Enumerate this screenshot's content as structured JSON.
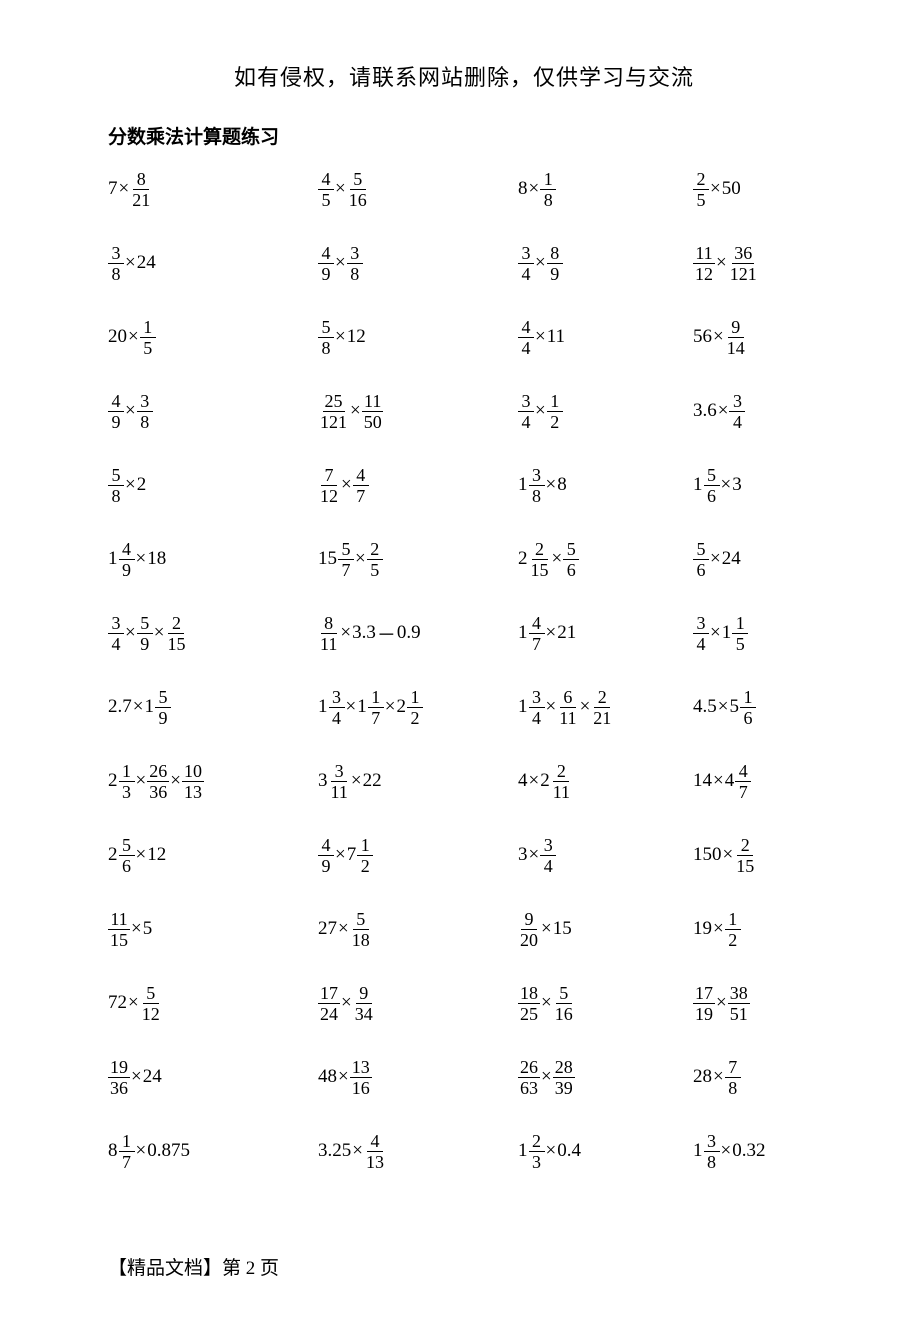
{
  "header_note": "如有侵权，请联系网站删除，仅供学习与交流",
  "title": "分数乘法计算题练习",
  "footer": "【精品文档】第 2 页",
  "times": "×",
  "minus": "－",
  "rows": [
    [
      [
        {
          "t": "int",
          "v": "7"
        },
        {
          "t": "op",
          "v": "×"
        },
        {
          "t": "frac",
          "n": "8",
          "d": "21"
        }
      ],
      [
        {
          "t": "frac",
          "n": "4",
          "d": "5"
        },
        {
          "t": "op",
          "v": "×"
        },
        {
          "t": "frac",
          "n": "5",
          "d": "16"
        }
      ],
      [
        {
          "t": "int",
          "v": "8"
        },
        {
          "t": "op",
          "v": "×"
        },
        {
          "t": "frac",
          "n": "1",
          "d": "8"
        }
      ],
      [
        {
          "t": "frac",
          "n": "2",
          "d": "5"
        },
        {
          "t": "op",
          "v": "×"
        },
        {
          "t": "int",
          "v": "50"
        }
      ]
    ],
    [
      [
        {
          "t": "frac",
          "n": "3",
          "d": "8"
        },
        {
          "t": "op",
          "v": "×"
        },
        {
          "t": "int",
          "v": "24"
        }
      ],
      [
        {
          "t": "frac",
          "n": "4",
          "d": "9"
        },
        {
          "t": "op",
          "v": "×"
        },
        {
          "t": "frac",
          "n": "3",
          "d": "8"
        }
      ],
      [
        {
          "t": "frac",
          "n": "3",
          "d": "4"
        },
        {
          "t": "op",
          "v": "×"
        },
        {
          "t": "frac",
          "n": "8",
          "d": "9"
        }
      ],
      [
        {
          "t": "frac",
          "n": "11",
          "d": "12"
        },
        {
          "t": "op",
          "v": "×"
        },
        {
          "t": "frac",
          "n": "36",
          "d": "121"
        }
      ]
    ],
    [
      [
        {
          "t": "int",
          "v": "20"
        },
        {
          "t": "op",
          "v": "×"
        },
        {
          "t": "frac",
          "n": "1",
          "d": "5"
        }
      ],
      [
        {
          "t": "frac",
          "n": "5",
          "d": "8"
        },
        {
          "t": "op",
          "v": "×"
        },
        {
          "t": "int",
          "v": "12"
        }
      ],
      [
        {
          "t": "frac",
          "n": "4",
          "d": "4"
        },
        {
          "t": "op",
          "v": "×"
        },
        {
          "t": "int",
          "v": "11"
        }
      ],
      [
        {
          "t": "int",
          "v": "56"
        },
        {
          "t": "op",
          "v": "×"
        },
        {
          "t": "frac",
          "n": "9",
          "d": "14"
        }
      ]
    ],
    [
      [
        {
          "t": "frac",
          "n": "4",
          "d": "9"
        },
        {
          "t": "op",
          "v": "×"
        },
        {
          "t": "frac",
          "n": "3",
          "d": "8"
        }
      ],
      [
        {
          "t": "frac",
          "n": "25",
          "d": "121"
        },
        {
          "t": "op",
          "v": "×"
        },
        {
          "t": "frac",
          "n": "11",
          "d": "50"
        }
      ],
      [
        {
          "t": "frac",
          "n": "3",
          "d": "4"
        },
        {
          "t": "op",
          "v": "×"
        },
        {
          "t": "frac",
          "n": "1",
          "d": "2"
        }
      ],
      [
        {
          "t": "int",
          "v": "3.6"
        },
        {
          "t": "op",
          "v": "×"
        },
        {
          "t": "frac",
          "n": "3",
          "d": "4"
        }
      ]
    ],
    [
      [
        {
          "t": "frac",
          "n": "5",
          "d": "8"
        },
        {
          "t": "op",
          "v": "×"
        },
        {
          "t": "int",
          "v": "2"
        }
      ],
      [
        {
          "t": "frac",
          "n": "7",
          "d": "12"
        },
        {
          "t": "op",
          "v": "×"
        },
        {
          "t": "frac",
          "n": "4",
          "d": "7"
        }
      ],
      [
        {
          "t": "mixed",
          "w": "1",
          "n": "3",
          "d": "8"
        },
        {
          "t": "op",
          "v": "×"
        },
        {
          "t": "int",
          "v": "8"
        }
      ],
      [
        {
          "t": "mixed",
          "w": "1",
          "n": "5",
          "d": "6"
        },
        {
          "t": "op",
          "v": "×"
        },
        {
          "t": "int",
          "v": "3"
        }
      ]
    ],
    [
      [
        {
          "t": "mixed",
          "w": "1",
          "n": "4",
          "d": "9"
        },
        {
          "t": "op",
          "v": "×"
        },
        {
          "t": "int",
          "v": "18"
        }
      ],
      [
        {
          "t": "mixed",
          "w": "15",
          "n": "5",
          "d": "7"
        },
        {
          "t": "op",
          "v": "×"
        },
        {
          "t": "frac",
          "n": "2",
          "d": "5"
        }
      ],
      [
        {
          "t": "mixed",
          "w": "2",
          "n": "2",
          "d": "15"
        },
        {
          "t": "op",
          "v": "×"
        },
        {
          "t": "frac",
          "n": "5",
          "d": "6"
        }
      ],
      [
        {
          "t": "frac",
          "n": "5",
          "d": "6"
        },
        {
          "t": "op",
          "v": "×"
        },
        {
          "t": "int",
          "v": "24"
        }
      ]
    ],
    [
      [
        {
          "t": "frac",
          "n": "3",
          "d": "4"
        },
        {
          "t": "op",
          "v": "×"
        },
        {
          "t": "frac",
          "n": "5",
          "d": "9"
        },
        {
          "t": "op",
          "v": "×"
        },
        {
          "t": "frac",
          "n": "2",
          "d": "15"
        }
      ],
      [
        {
          "t": "frac",
          "n": "8",
          "d": "11"
        },
        {
          "t": "op",
          "v": "×"
        },
        {
          "t": "int",
          "v": "3.3"
        },
        {
          "t": "op",
          "v": "－"
        },
        {
          "t": "int",
          "v": "0.9"
        }
      ],
      [
        {
          "t": "mixed",
          "w": "1",
          "n": "4",
          "d": "7"
        },
        {
          "t": "op",
          "v": "×"
        },
        {
          "t": "int",
          "v": "21"
        }
      ],
      [
        {
          "t": "frac",
          "n": "3",
          "d": "4"
        },
        {
          "t": "op",
          "v": "×"
        },
        {
          "t": "mixed",
          "w": "1",
          "n": "1",
          "d": "5"
        }
      ]
    ],
    [
      [
        {
          "t": "int",
          "v": "2.7"
        },
        {
          "t": "op",
          "v": "×"
        },
        {
          "t": "mixed",
          "w": "1",
          "n": "5",
          "d": "9"
        }
      ],
      [
        {
          "t": "mixed",
          "w": "1",
          "n": "3",
          "d": "4"
        },
        {
          "t": "op",
          "v": "×"
        },
        {
          "t": "mixed",
          "w": "1",
          "n": "1",
          "d": "7"
        },
        {
          "t": "op",
          "v": "×"
        },
        {
          "t": "mixed",
          "w": "2",
          "n": "1",
          "d": "2"
        }
      ],
      [
        {
          "t": "mixed",
          "w": "1",
          "n": "3",
          "d": "4"
        },
        {
          "t": "op",
          "v": "×"
        },
        {
          "t": "frac",
          "n": "6",
          "d": "11"
        },
        {
          "t": "op",
          "v": "×"
        },
        {
          "t": "frac",
          "n": "2",
          "d": "21"
        }
      ],
      [
        {
          "t": "int",
          "v": "4.5"
        },
        {
          "t": "op",
          "v": "×"
        },
        {
          "t": "mixed",
          "w": "5",
          "n": "1",
          "d": "6"
        }
      ]
    ],
    [
      [
        {
          "t": "mixed",
          "w": "2",
          "n": "1",
          "d": "3"
        },
        {
          "t": "op",
          "v": "×"
        },
        {
          "t": "frac",
          "n": "26",
          "d": "36"
        },
        {
          "t": "op",
          "v": "×"
        },
        {
          "t": "frac",
          "n": "10",
          "d": "13"
        }
      ],
      [
        {
          "t": "mixed",
          "w": "3",
          "n": "3",
          "d": "11"
        },
        {
          "t": "op",
          "v": "×"
        },
        {
          "t": "int",
          "v": "22"
        }
      ],
      [
        {
          "t": "int",
          "v": "4"
        },
        {
          "t": "op",
          "v": "×"
        },
        {
          "t": "mixed",
          "w": "2",
          "n": "2",
          "d": "11"
        }
      ],
      [
        {
          "t": "int",
          "v": "14"
        },
        {
          "t": "op",
          "v": "×"
        },
        {
          "t": "mixed",
          "w": "4",
          "n": "4",
          "d": "7"
        }
      ]
    ],
    [
      [
        {
          "t": "mixed",
          "w": "2",
          "n": "5",
          "d": "6"
        },
        {
          "t": "op",
          "v": "×"
        },
        {
          "t": "int",
          "v": "12"
        }
      ],
      [
        {
          "t": "frac",
          "n": "4",
          "d": "9"
        },
        {
          "t": "op",
          "v": "×"
        },
        {
          "t": "mixed",
          "w": "7",
          "n": "1",
          "d": "2"
        }
      ],
      [
        {
          "t": "int",
          "v": "3"
        },
        {
          "t": "op",
          "v": "×"
        },
        {
          "t": "frac",
          "n": "3",
          "d": "4"
        }
      ],
      [
        {
          "t": "int",
          "v": "150"
        },
        {
          "t": "op",
          "v": "×"
        },
        {
          "t": "frac",
          "n": "2",
          "d": "15"
        }
      ]
    ],
    [
      [
        {
          "t": "frac",
          "n": "11",
          "d": "15"
        },
        {
          "t": "op",
          "v": "×"
        },
        {
          "t": "int",
          "v": "5"
        }
      ],
      [
        {
          "t": "int",
          "v": "27"
        },
        {
          "t": "op",
          "v": "×"
        },
        {
          "t": "frac",
          "n": "5",
          "d": "18"
        }
      ],
      [
        {
          "t": "frac",
          "n": "9",
          "d": "20"
        },
        {
          "t": "op",
          "v": "×"
        },
        {
          "t": "int",
          "v": "15"
        }
      ],
      [
        {
          "t": "int",
          "v": "19"
        },
        {
          "t": "op",
          "v": "×"
        },
        {
          "t": "frac",
          "n": "1",
          "d": "2"
        }
      ]
    ],
    [
      [
        {
          "t": "int",
          "v": "72"
        },
        {
          "t": "op",
          "v": "×"
        },
        {
          "t": "frac",
          "n": "5",
          "d": "12"
        }
      ],
      [
        {
          "t": "frac",
          "n": "17",
          "d": "24"
        },
        {
          "t": "op",
          "v": "×"
        },
        {
          "t": "frac",
          "n": "9",
          "d": "34"
        }
      ],
      [
        {
          "t": "frac",
          "n": "18",
          "d": "25"
        },
        {
          "t": "op",
          "v": "×"
        },
        {
          "t": "frac",
          "n": "5",
          "d": "16"
        }
      ],
      [
        {
          "t": "frac",
          "n": "17",
          "d": "19"
        },
        {
          "t": "op",
          "v": "×"
        },
        {
          "t": "frac",
          "n": "38",
          "d": "51"
        }
      ]
    ],
    [
      [
        {
          "t": "frac",
          "n": "19",
          "d": "36"
        },
        {
          "t": "op",
          "v": "×"
        },
        {
          "t": "int",
          "v": "24"
        }
      ],
      [
        {
          "t": "int",
          "v": "48"
        },
        {
          "t": "op",
          "v": "×"
        },
        {
          "t": "frac",
          "n": "13",
          "d": "16"
        }
      ],
      [
        {
          "t": "frac",
          "n": "26",
          "d": "63"
        },
        {
          "t": "op",
          "v": "×"
        },
        {
          "t": "frac",
          "n": "28",
          "d": "39"
        }
      ],
      [
        {
          "t": "int",
          "v": "28"
        },
        {
          "t": "op",
          "v": "×"
        },
        {
          "t": "frac",
          "n": "7",
          "d": "8"
        }
      ]
    ],
    [
      [
        {
          "t": "mixed",
          "w": "8",
          "n": "1",
          "d": "7"
        },
        {
          "t": "op",
          "v": "×"
        },
        {
          "t": "int",
          "v": "0.875"
        }
      ],
      [
        {
          "t": "int",
          "v": "3.25"
        },
        {
          "t": "op",
          "v": "×"
        },
        {
          "t": "frac",
          "n": "4",
          "d": "13"
        }
      ],
      [
        {
          "t": "mixed",
          "w": "1",
          "n": "2",
          "d": "3"
        },
        {
          "t": "op",
          "v": "×"
        },
        {
          "t": "int",
          "v": " 0.4"
        }
      ],
      [
        {
          "t": "mixed",
          "w": "1",
          "n": "3",
          "d": "8"
        },
        {
          "t": "op",
          "v": "×"
        },
        {
          "t": "int",
          "v": "0.32"
        }
      ]
    ]
  ]
}
